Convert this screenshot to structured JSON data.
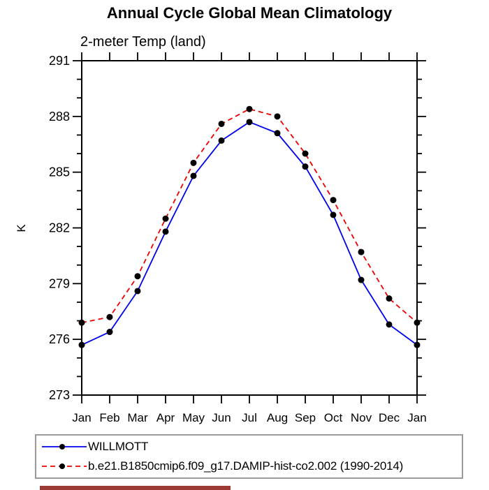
{
  "chart_data": {
    "type": "line",
    "title": "Annual Cycle Global Mean Climatology",
    "subtitle": "2-meter Temp (land)",
    "ylabel": "K",
    "categories": [
      "Jan",
      "Feb",
      "Mar",
      "Apr",
      "May",
      "Jun",
      "Jul",
      "Aug",
      "Sep",
      "Oct",
      "Nov",
      "Dec",
      "Jan"
    ],
    "series": [
      {
        "name": "WILLMOTT",
        "color": "#0000ee",
        "line_style": "solid",
        "marker": "black-dot",
        "values": [
          275.7,
          276.4,
          278.6,
          281.8,
          284.8,
          286.7,
          287.7,
          287.1,
          285.3,
          282.7,
          279.2,
          276.8,
          275.7
        ]
      },
      {
        "name": "b.e21.B1850cmip6.f09_g17.DAMIP-hist-co2.002 (1990-2014)",
        "color": "#ee0000",
        "line_style": "dashed",
        "marker": "black-dot",
        "values": [
          276.9,
          277.2,
          279.4,
          282.5,
          285.5,
          287.6,
          288.4,
          288.0,
          286.0,
          283.5,
          280.7,
          278.2,
          276.9
        ]
      }
    ],
    "ylim": [
      273,
      291
    ],
    "yticks": [
      273,
      276,
      279,
      282,
      285,
      288,
      291
    ],
    "y_minor_step": 1,
    "grid": false,
    "legend_position": "bottom",
    "marker_color": "#000000",
    "axis_color": "#000000"
  },
  "legend_border_color": "#9a9a9a",
  "footer_bar_color": "#9c3a35"
}
